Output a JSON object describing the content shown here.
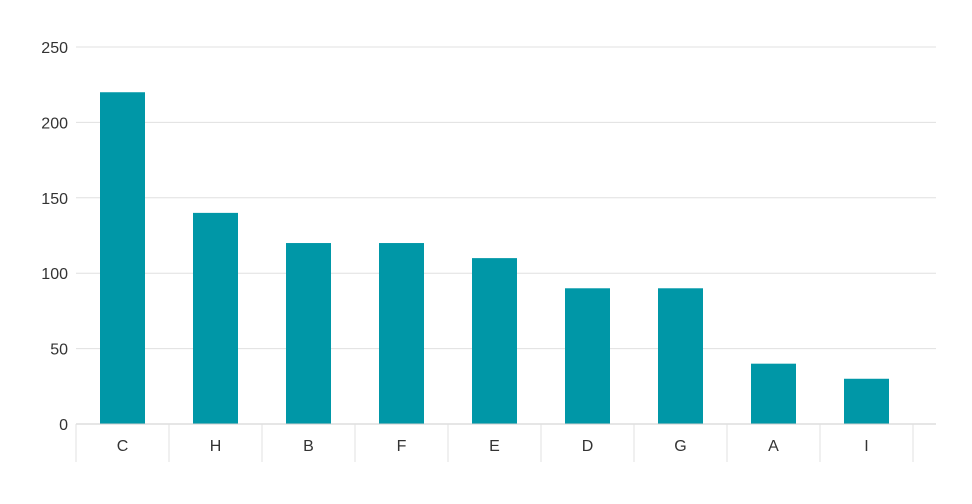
{
  "chart_data": {
    "type": "bar",
    "categories": [
      "C",
      "H",
      "B",
      "F",
      "E",
      "D",
      "G",
      "A",
      "I"
    ],
    "values": [
      220,
      140,
      120,
      120,
      110,
      90,
      90,
      40,
      30
    ],
    "ylim": [
      0,
      250
    ],
    "yticks": [
      0,
      50,
      100,
      150,
      200,
      250
    ],
    "grid": true,
    "legend": "none",
    "colors": {
      "bar": "#0097a7",
      "grid": "#e0e0e0",
      "axis": "#cccccc",
      "text": "#333333"
    }
  }
}
